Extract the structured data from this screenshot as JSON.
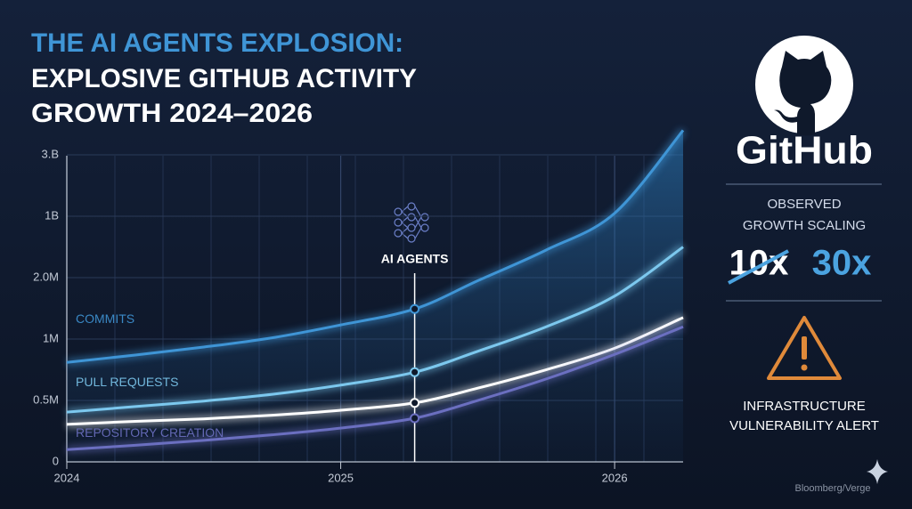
{
  "title_lines": [
    "THE AI AGENTS EXPLOSION:",
    "EXPLOSIVE GITHUB ACTIVITY",
    "GROWTH 2024–2026"
  ],
  "chart_data": {
    "type": "line",
    "x": [
      2024,
      2024.25,
      2024.5,
      2024.75,
      2025,
      2025.27,
      2025.5,
      2025.75,
      2026,
      2026.25
    ],
    "xlim": [
      2024,
      2026.25
    ],
    "xticks": [
      2024,
      2025,
      2026
    ],
    "ylabels": [
      "0",
      "0.5M",
      "1M",
      "2.0M",
      "1B",
      "3.B"
    ],
    "ylim": [
      0,
      5.45
    ],
    "grid": true,
    "series": [
      {
        "name": "COMMITS",
        "color": "#3f95d6",
        "values": [
          1.62,
          1.74,
          1.87,
          2.02,
          2.23,
          2.49,
          2.95,
          3.45,
          4.05,
          5.4
        ]
      },
      {
        "name": "PULL REQUESTS",
        "color": "#7cc8ee",
        "values": [
          0.81,
          0.9,
          0.99,
          1.1,
          1.25,
          1.46,
          1.8,
          2.2,
          2.7,
          3.5
        ]
      },
      {
        "color": "#ffffff",
        "values": [
          0.61,
          0.66,
          0.7,
          0.76,
          0.84,
          0.96,
          1.2,
          1.5,
          1.85,
          2.35
        ]
      },
      {
        "name": "REPOSITORY CREATION",
        "color": "#6b6fc0",
        "values": [
          0.2,
          0.27,
          0.35,
          0.44,
          0.55,
          0.71,
          1.0,
          1.35,
          1.75,
          2.2
        ]
      }
    ],
    "annotation": {
      "x": 2025.27,
      "text": "AI AGENTS"
    }
  },
  "panel": {
    "brand": "GitHub",
    "scaling_lines": [
      "OBSERVED",
      "GROWTH SCALING"
    ],
    "old_factor": "10x",
    "new_factor": "30x",
    "alert_lines": [
      "INFRASTRUCTURE",
      "VULNERABILITY ALERT"
    ]
  },
  "watermark": "Bloomberg/Verge"
}
